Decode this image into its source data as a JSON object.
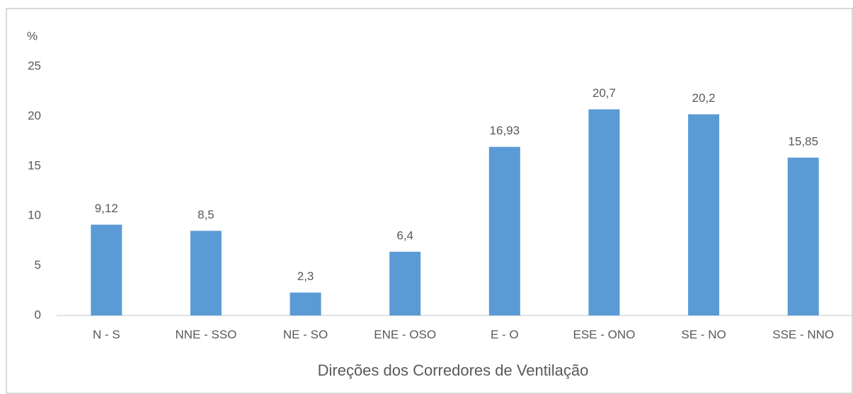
{
  "chart_data": {
    "type": "bar",
    "ylabel": "%",
    "xlabel": "Direções dos Corredores de Ventilação",
    "categories": [
      "N - S",
      "NNE - SSO",
      "NE - SO",
      "ENE - OSO",
      "E - O",
      "ESE - ONO",
      "SE - NO",
      "SSE - NNO"
    ],
    "values": [
      9.12,
      8.5,
      2.3,
      6.4,
      16.93,
      20.7,
      20.2,
      15.85
    ],
    "value_labels": [
      "9,12",
      "8,5",
      "2,3",
      "6,4",
      "16,93",
      "20,7",
      "20,2",
      "15,85"
    ],
    "color": "#5b9bd5",
    "ylim": [
      0,
      25
    ],
    "yticks": [
      0,
      5,
      10,
      15,
      20,
      25
    ],
    "grid": false
  }
}
